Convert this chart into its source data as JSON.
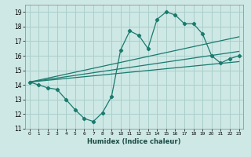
{
  "xlabel": "Humidex (Indice chaleur)",
  "ylabel": "",
  "background_color": "#cde8e5",
  "grid_color": "#aacfcc",
  "line_color": "#1a7a6e",
  "xlim": [
    -0.5,
    23.5
  ],
  "ylim": [
    11,
    19.5
  ],
  "xticks": [
    0,
    1,
    2,
    3,
    4,
    5,
    6,
    7,
    8,
    9,
    10,
    11,
    12,
    13,
    14,
    15,
    16,
    17,
    18,
    19,
    20,
    21,
    22,
    23
  ],
  "yticks": [
    11,
    12,
    13,
    14,
    15,
    16,
    17,
    18,
    19
  ],
  "series1_x": [
    0,
    1,
    2,
    3,
    4,
    5,
    6,
    7,
    8,
    9,
    10,
    11,
    12,
    13,
    14,
    15,
    16,
    17,
    18,
    19,
    20,
    21,
    22,
    23
  ],
  "series1_y": [
    14.2,
    14.0,
    13.8,
    13.7,
    13.0,
    12.3,
    11.7,
    11.5,
    12.1,
    13.2,
    16.4,
    17.7,
    17.4,
    16.5,
    18.5,
    19.0,
    18.8,
    18.2,
    18.2,
    17.5,
    16.0,
    15.5,
    15.8,
    16.0
  ],
  "line2_x": [
    0,
    23
  ],
  "line2_y": [
    14.2,
    15.6
  ],
  "line3_x": [
    0,
    23
  ],
  "line3_y": [
    14.2,
    17.3
  ],
  "line4_x": [
    0,
    23
  ],
  "line4_y": [
    14.2,
    16.3
  ]
}
